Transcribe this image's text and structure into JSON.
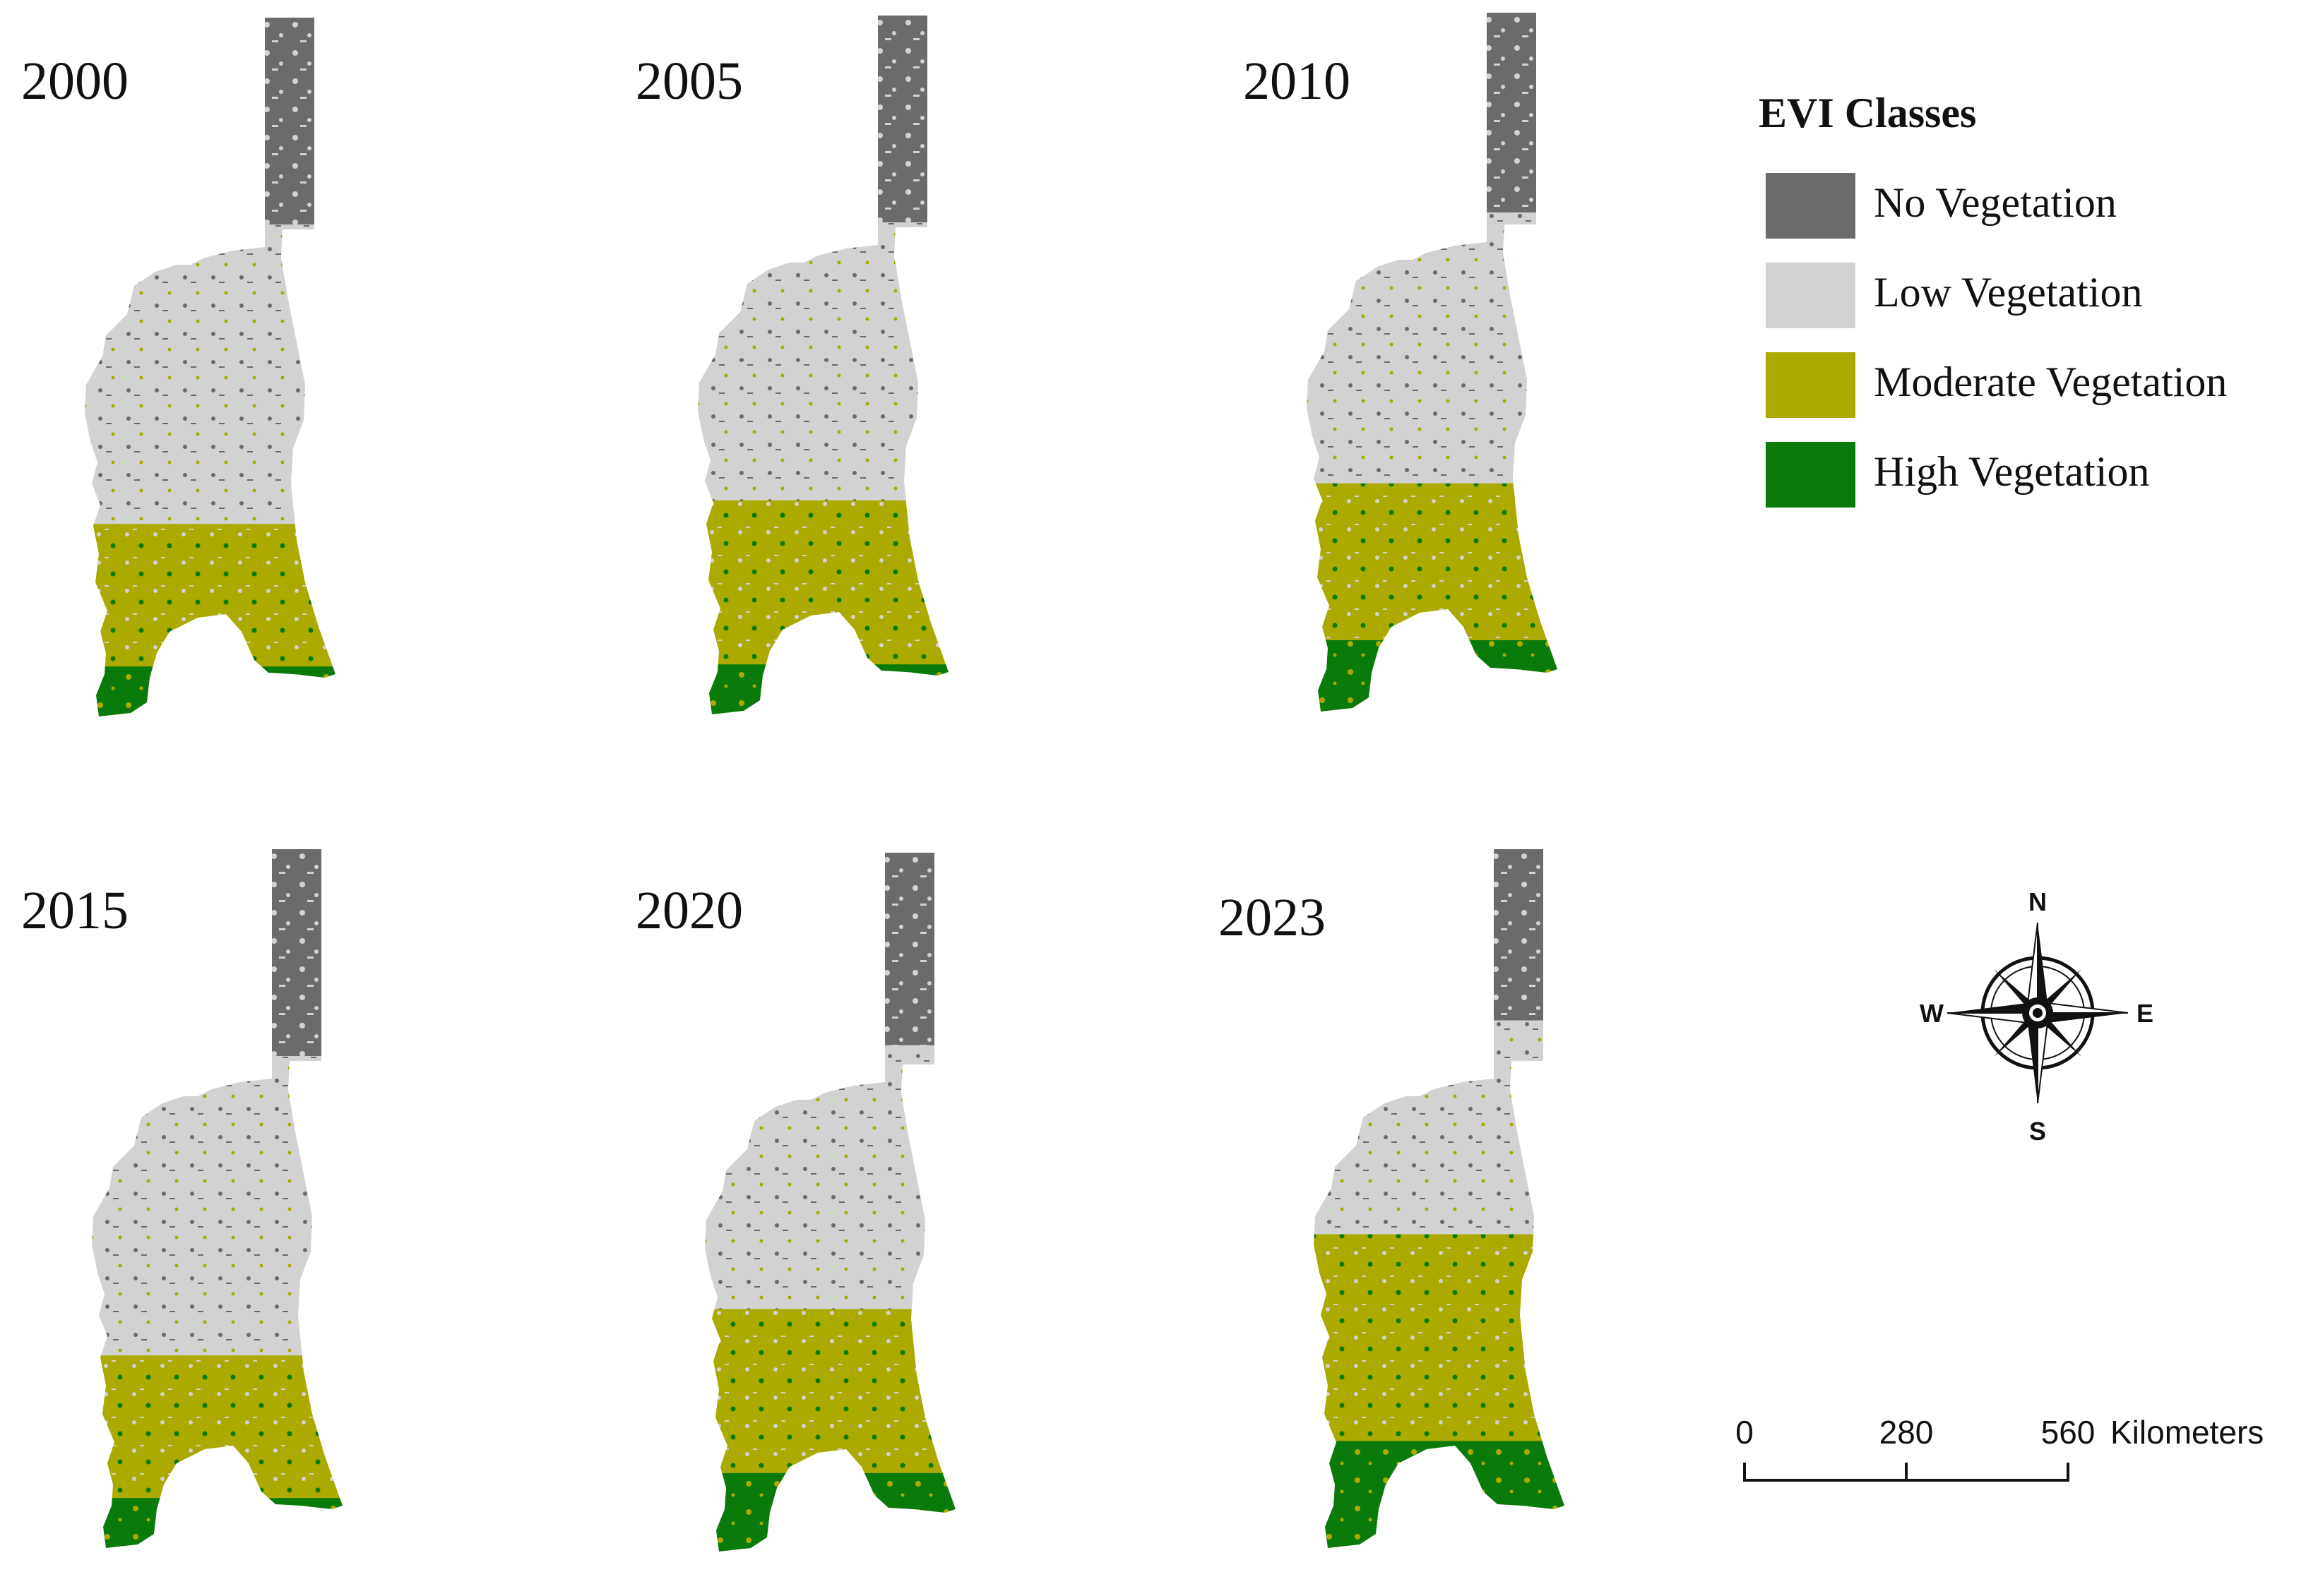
{
  "panels": [
    {
      "year": "2000",
      "mix": {
        "dark": 0.3,
        "light": 0.42,
        "olive": 0.2,
        "green": 0.08
      }
    },
    {
      "year": "2005",
      "mix": {
        "dark": 0.3,
        "light": 0.39,
        "olive": 0.23,
        "green": 0.08
      }
    },
    {
      "year": "2010",
      "mix": {
        "dark": 0.29,
        "light": 0.38,
        "olive": 0.22,
        "green": 0.11
      }
    },
    {
      "year": "2015",
      "mix": {
        "dark": 0.3,
        "light": 0.42,
        "olive": 0.2,
        "green": 0.08
      }
    },
    {
      "year": "2020",
      "mix": {
        "dark": 0.28,
        "light": 0.37,
        "olive": 0.23,
        "green": 0.12
      }
    },
    {
      "year": "2023",
      "mix": {
        "dark": 0.25,
        "light": 0.3,
        "olive": 0.29,
        "green": 0.16
      }
    }
  ],
  "legend": {
    "title": "EVI Classes",
    "items": [
      {
        "label": "No Vegetation",
        "color": "#6b6b6b",
        "key": "dark"
      },
      {
        "label": "Low Vegetation",
        "color": "#d2d2d2",
        "key": "light"
      },
      {
        "label": "Moderate Vegetation",
        "color": "#aaaa00",
        "key": "olive"
      },
      {
        "label": "High Vegetation",
        "color": "#0a7a0a",
        "key": "green"
      }
    ]
  },
  "north_arrow": {
    "n": "N",
    "s": "S",
    "e": "E",
    "w": "W"
  },
  "scale_bar": {
    "ticks": [
      "0",
      "280",
      "560"
    ],
    "unit": "Kilometers"
  }
}
